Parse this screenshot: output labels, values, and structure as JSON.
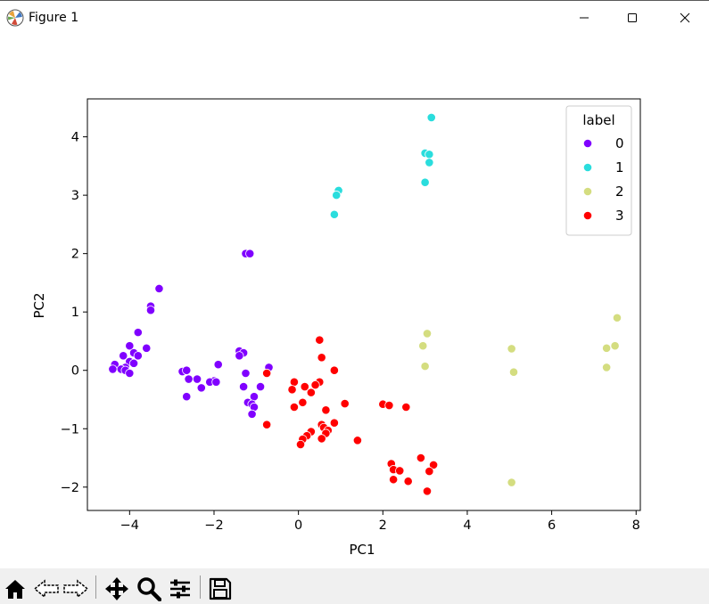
{
  "window": {
    "title": "Figure 1"
  },
  "toolbar": {
    "tools": [
      "home-icon",
      "back-icon",
      "forward-icon",
      "pan-icon",
      "zoom-icon",
      "configure-subplots-icon",
      "save-icon"
    ]
  },
  "colors": {
    "0": "#8000ff",
    "1": "#2adddd",
    "2": "#d4dd80",
    "3": "#ff0000"
  },
  "chart_data": {
    "type": "scatter",
    "title": "",
    "xlabel": "PC1",
    "ylabel": "PC2",
    "xlim": [
      -5.0,
      8.1
    ],
    "ylim": [
      -2.4,
      4.65
    ],
    "xticks": [
      -4,
      -2,
      0,
      2,
      4,
      6,
      8
    ],
    "yticks": [
      -2,
      -1,
      0,
      1,
      2,
      3,
      4
    ],
    "xtick_labels": [
      "−4",
      "−2",
      "0",
      "2",
      "4",
      "6",
      "8"
    ],
    "ytick_labels": [
      "−2",
      "−1",
      "0",
      "1",
      "2",
      "3",
      "4"
    ],
    "grid": false,
    "legend": {
      "title": "label",
      "placement": "top-right",
      "entries": [
        "0",
        "1",
        "2",
        "3"
      ]
    },
    "series": [
      {
        "name": "0",
        "color": "#8000ff",
        "points": [
          [
            -3.3,
            1.4
          ],
          [
            -3.5,
            1.1
          ],
          [
            -3.5,
            1.03
          ],
          [
            -3.8,
            0.65
          ],
          [
            -3.6,
            0.38
          ],
          [
            -4.0,
            0.42
          ],
          [
            -3.9,
            0.3
          ],
          [
            -3.8,
            0.25
          ],
          [
            -4.15,
            0.25
          ],
          [
            -4.0,
            0.15
          ],
          [
            -3.9,
            0.12
          ],
          [
            -4.35,
            0.1
          ],
          [
            -4.1,
            0.05
          ],
          [
            -4.2,
            0.02
          ],
          [
            -4.4,
            0.02
          ],
          [
            -4.1,
            0.0
          ],
          [
            -4.0,
            -0.05
          ],
          [
            -1.25,
            2.0
          ],
          [
            -1.15,
            2.0
          ],
          [
            -1.4,
            0.33
          ],
          [
            -1.3,
            0.3
          ],
          [
            -1.4,
            0.25
          ],
          [
            -1.9,
            0.1
          ],
          [
            -0.7,
            0.05
          ],
          [
            -1.25,
            -0.05
          ],
          [
            -2.75,
            -0.02
          ],
          [
            -2.65,
            0.0
          ],
          [
            -2.6,
            -0.15
          ],
          [
            -2.4,
            -0.15
          ],
          [
            -2.0,
            -0.18
          ],
          [
            -2.1,
            -0.2
          ],
          [
            -1.95,
            -0.2
          ],
          [
            -2.3,
            -0.3
          ],
          [
            -1.3,
            -0.28
          ],
          [
            -0.9,
            -0.28
          ],
          [
            -2.65,
            -0.45
          ],
          [
            -1.05,
            -0.45
          ],
          [
            -1.2,
            -0.55
          ],
          [
            -1.1,
            -0.58
          ],
          [
            -1.05,
            -0.63
          ],
          [
            -1.1,
            -0.75
          ]
        ]
      },
      {
        "name": "1",
        "color": "#2adddd",
        "points": [
          [
            3.15,
            4.33
          ],
          [
            3.0,
            3.72
          ],
          [
            3.1,
            3.7
          ],
          [
            3.1,
            3.56
          ],
          [
            3.0,
            3.22
          ],
          [
            0.95,
            3.08
          ],
          [
            0.9,
            3.0
          ],
          [
            0.85,
            2.67
          ]
        ]
      },
      {
        "name": "2",
        "color": "#d4dd80",
        "points": [
          [
            7.55,
            0.9
          ],
          [
            3.05,
            0.63
          ],
          [
            2.95,
            0.42
          ],
          [
            7.5,
            0.42
          ],
          [
            7.3,
            0.38
          ],
          [
            5.05,
            0.37
          ],
          [
            3.0,
            0.07
          ],
          [
            7.3,
            0.05
          ],
          [
            5.1,
            -0.03
          ],
          [
            5.05,
            -1.92
          ]
        ]
      },
      {
        "name": "3",
        "color": "#ff0000",
        "points": [
          [
            0.5,
            0.52
          ],
          [
            0.55,
            0.22
          ],
          [
            0.85,
            0.0
          ],
          [
            -0.75,
            -0.05
          ],
          [
            0.5,
            -0.2
          ],
          [
            -0.1,
            -0.2
          ],
          [
            0.4,
            -0.25
          ],
          [
            0.15,
            -0.28
          ],
          [
            -0.15,
            -0.33
          ],
          [
            0.3,
            -0.38
          ],
          [
            0.1,
            -0.55
          ],
          [
            1.1,
            -0.57
          ],
          [
            2.0,
            -0.58
          ],
          [
            2.15,
            -0.6
          ],
          [
            2.55,
            -0.63
          ],
          [
            -0.1,
            -0.63
          ],
          [
            0.65,
            -0.68
          ],
          [
            0.85,
            -0.9
          ],
          [
            -0.75,
            -0.93
          ],
          [
            0.55,
            -0.93
          ],
          [
            0.6,
            -0.98
          ],
          [
            0.7,
            -1.03
          ],
          [
            0.65,
            -1.08
          ],
          [
            0.3,
            -1.05
          ],
          [
            0.2,
            -1.12
          ],
          [
            0.55,
            -1.17
          ],
          [
            1.4,
            -1.2
          ],
          [
            0.1,
            -1.18
          ],
          [
            0.05,
            -1.27
          ],
          [
            2.9,
            -1.5
          ],
          [
            2.2,
            -1.6
          ],
          [
            3.2,
            -1.62
          ],
          [
            2.25,
            -1.7
          ],
          [
            2.4,
            -1.72
          ],
          [
            3.1,
            -1.73
          ],
          [
            2.25,
            -1.87
          ],
          [
            2.6,
            -1.9
          ],
          [
            3.05,
            -2.07
          ]
        ]
      }
    ]
  }
}
